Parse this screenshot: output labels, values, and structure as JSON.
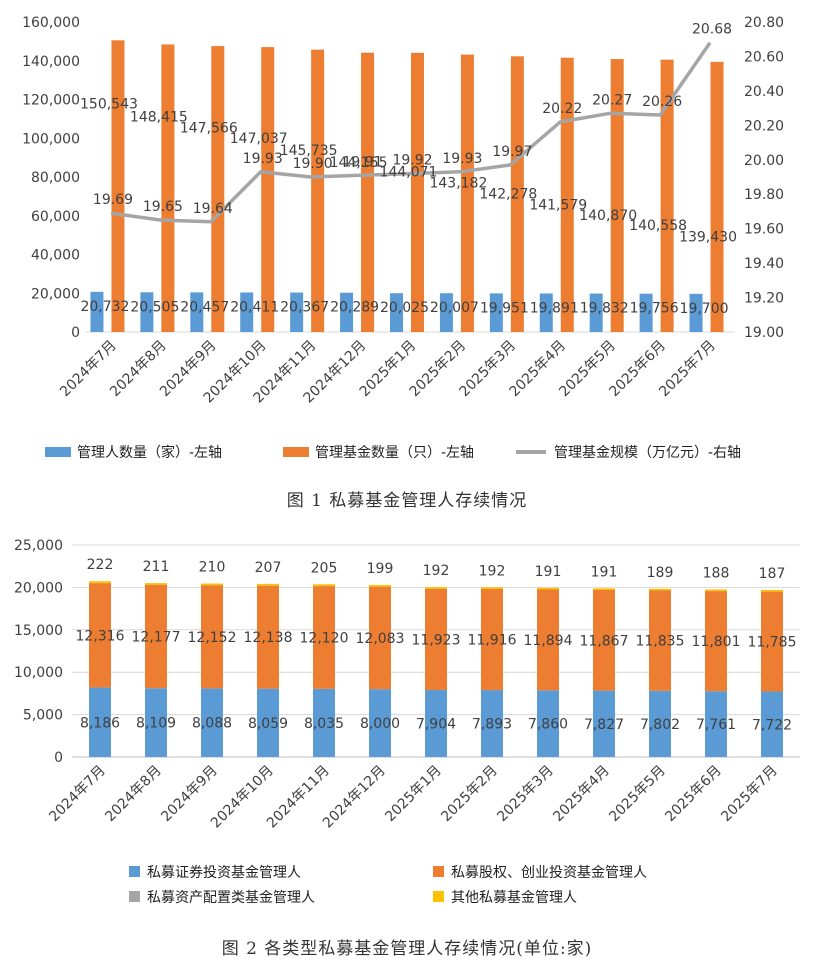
{
  "colors": {
    "blue": "#5B9BD5",
    "orange": "#ED7D31",
    "gray": "#A5A5A5",
    "gold": "#FFC000",
    "text": "#404040"
  },
  "chart_data": [
    {
      "type": "bar",
      "caption": "图 1  私募基金管理人存续情况",
      "categories": [
        "2024年7月",
        "2024年8月",
        "2024年9月",
        "2024年10月",
        "2024年11月",
        "2024年12月",
        "2025年1月",
        "2025年2月",
        "2025年3月",
        "2025年4月",
        "2025年5月",
        "2025年6月",
        "2025年7月"
      ],
      "y_left": {
        "min": 0,
        "max": 160000,
        "step": 20000,
        "ticks": [
          "0",
          "20,000",
          "40,000",
          "60,000",
          "80,000",
          "100,000",
          "120,000",
          "140,000",
          "160,000"
        ]
      },
      "y_right": {
        "min": 19.0,
        "max": 20.8,
        "step": 0.2,
        "ticks": [
          "19.00",
          "19.20",
          "19.40",
          "19.60",
          "19.80",
          "20.00",
          "20.20",
          "20.40",
          "20.60",
          "20.80"
        ]
      },
      "series": [
        {
          "name": "管理人数量（家）-左轴",
          "kind": "bar",
          "axis": "left",
          "values": [
            20732,
            20505,
            20457,
            20411,
            20367,
            20289,
            20025,
            20007,
            19951,
            19891,
            19832,
            19756,
            19700
          ],
          "labels": [
            "20,732",
            "20,505",
            "20,457",
            "20,411",
            "20,367",
            "20,289",
            "20,025",
            "20,007",
            "19,951",
            "19,891",
            "19,832",
            "19,756",
            "19,700"
          ]
        },
        {
          "name": "管理基金数量（只）-左轴",
          "kind": "bar",
          "axis": "left",
          "values": [
            150543,
            148415,
            147566,
            147037,
            145735,
            144155,
            144071,
            143182,
            142278,
            141579,
            140870,
            140558,
            139430
          ],
          "labels": [
            "150,543",
            "148,415",
            "147,566",
            "147,037",
            "145,735",
            "144,155",
            "144,071",
            "143,182",
            "142,278",
            "141,579",
            "140,870",
            "140,558",
            "139,430"
          ]
        },
        {
          "name": "管理基金规模（万亿元）-右轴",
          "kind": "line",
          "axis": "right",
          "values": [
            19.69,
            19.65,
            19.64,
            19.93,
            19.9,
            19.91,
            19.92,
            19.93,
            19.97,
            20.22,
            20.27,
            20.26,
            20.68
          ],
          "labels": [
            "19.69",
            "19.65",
            "19.64",
            "19.93",
            "19.90",
            "19.91",
            "19.92",
            "19.93",
            "19.97",
            "20.22",
            "20.27",
            "20.26",
            "20.68"
          ]
        }
      ]
    },
    {
      "type": "bar",
      "stacked": true,
      "caption": "图 2  各类型私募基金管理人存续情况(单位:家)",
      "categories": [
        "2024年7月",
        "2024年8月",
        "2024年9月",
        "2024年10月",
        "2024年11月",
        "2024年12月",
        "2025年1月",
        "2025年2月",
        "2025年3月",
        "2025年4月",
        "2025年5月",
        "2025年6月",
        "2025年7月"
      ],
      "y": {
        "min": 0,
        "max": 25000,
        "step": 5000,
        "ticks": [
          "0",
          "5,000",
          "10,000",
          "15,000",
          "20,000",
          "25,000"
        ]
      },
      "series": [
        {
          "name": "私募证券投资基金管理人",
          "values": [
            8186,
            8109,
            8088,
            8059,
            8035,
            8000,
            7904,
            7893,
            7860,
            7827,
            7802,
            7761,
            7722
          ],
          "labels": [
            "8,186",
            "8,109",
            "8,088",
            "8,059",
            "8,035",
            "8,000",
            "7,904",
            "7,893",
            "7,860",
            "7,827",
            "7,802",
            "7,761",
            "7,722"
          ]
        },
        {
          "name": "私募股权、创业投资基金管理人",
          "values": [
            12316,
            12177,
            12152,
            12138,
            12120,
            12083,
            11923,
            11916,
            11894,
            11867,
            11835,
            11801,
            11785
          ],
          "labels": [
            "12,316",
            "12,177",
            "12,152",
            "12,138",
            "12,120",
            "12,083",
            "11,923",
            "11,916",
            "11,894",
            "11,867",
            "11,835",
            "11,801",
            "11,785"
          ]
        },
        {
          "name": "私募资产配置类基金管理人",
          "values": [
            8,
            8,
            8,
            8,
            7,
            7,
            7,
            7,
            7,
            7,
            7,
            7,
            7
          ],
          "labels": []
        },
        {
          "name": "其他私募基金管理人",
          "values": [
            222,
            211,
            210,
            207,
            205,
            199,
            192,
            192,
            191,
            191,
            189,
            188,
            187
          ],
          "labels": [
            "222",
            "211",
            "210",
            "207",
            "205",
            "199",
            "192",
            "192",
            "191",
            "191",
            "189",
            "188",
            "187"
          ]
        }
      ]
    }
  ]
}
